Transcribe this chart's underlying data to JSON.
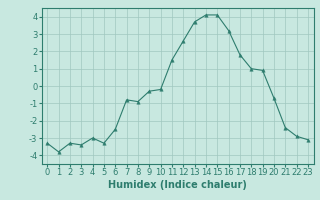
{
  "x": [
    0,
    1,
    2,
    3,
    4,
    5,
    6,
    7,
    8,
    9,
    10,
    11,
    12,
    13,
    14,
    15,
    16,
    17,
    18,
    19,
    20,
    21,
    22,
    23
  ],
  "y": [
    -3.3,
    -3.8,
    -3.3,
    -3.4,
    -3.0,
    -3.3,
    -2.5,
    -0.8,
    -0.9,
    -0.3,
    -0.2,
    1.5,
    2.6,
    3.7,
    4.1,
    4.1,
    3.2,
    1.8,
    1.0,
    0.9,
    -0.7,
    -2.4,
    -2.9,
    -3.1
  ],
  "line_color": "#2e7d6e",
  "marker": "^",
  "marker_size": 2.5,
  "bg_color": "#c8e8e0",
  "grid_color": "#a0c8c0",
  "xlabel": "Humidex (Indice chaleur)",
  "ylim": [
    -4.5,
    4.5
  ],
  "xlim": [
    -0.5,
    23.5
  ],
  "yticks": [
    -4,
    -3,
    -2,
    -1,
    0,
    1,
    2,
    3,
    4
  ],
  "xticks": [
    0,
    1,
    2,
    3,
    4,
    5,
    6,
    7,
    8,
    9,
    10,
    11,
    12,
    13,
    14,
    15,
    16,
    17,
    18,
    19,
    20,
    21,
    22,
    23
  ],
  "tick_fontsize": 6,
  "xlabel_fontsize": 7,
  "spine_color": "#2e7d6e"
}
